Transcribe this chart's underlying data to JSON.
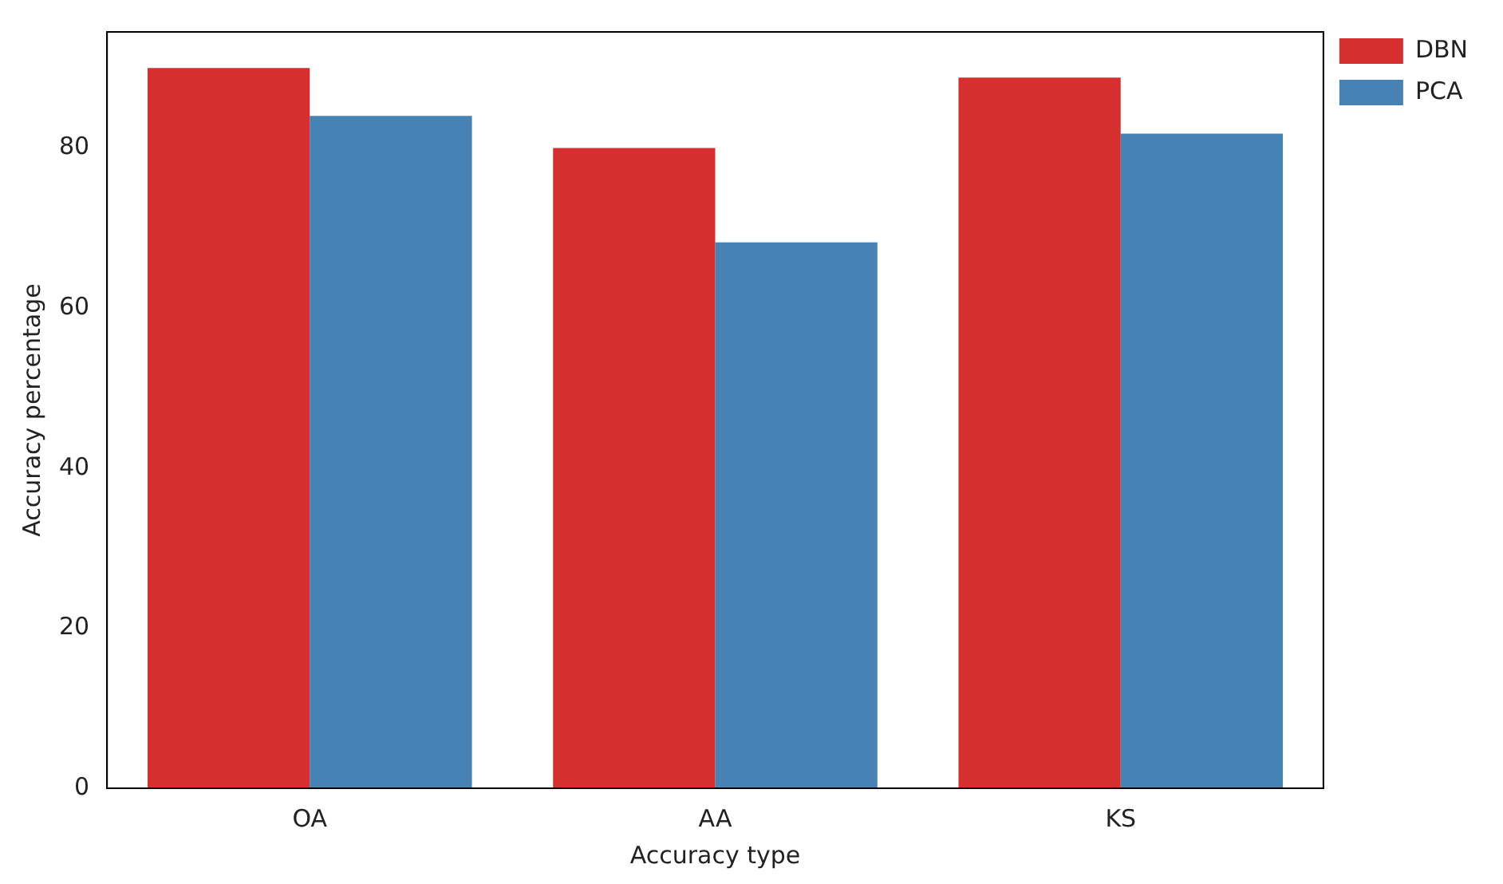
{
  "chart_data": {
    "type": "bar",
    "xlabel": "Accuracy type",
    "ylabel": "Accuracy percentage",
    "categories": [
      "OA",
      "AA",
      "KS"
    ],
    "series": [
      {
        "name": "DBN",
        "color": "#d62f2f",
        "values": [
          90,
          80,
          88.8
        ]
      },
      {
        "name": "PCA",
        "color": "#4682b4",
        "values": [
          84,
          68.2,
          81.8
        ]
      }
    ],
    "ylim": [
      0,
      94.5
    ],
    "yticks": [
      0,
      20,
      40,
      60,
      80
    ],
    "legend": "top right",
    "grid": false
  }
}
